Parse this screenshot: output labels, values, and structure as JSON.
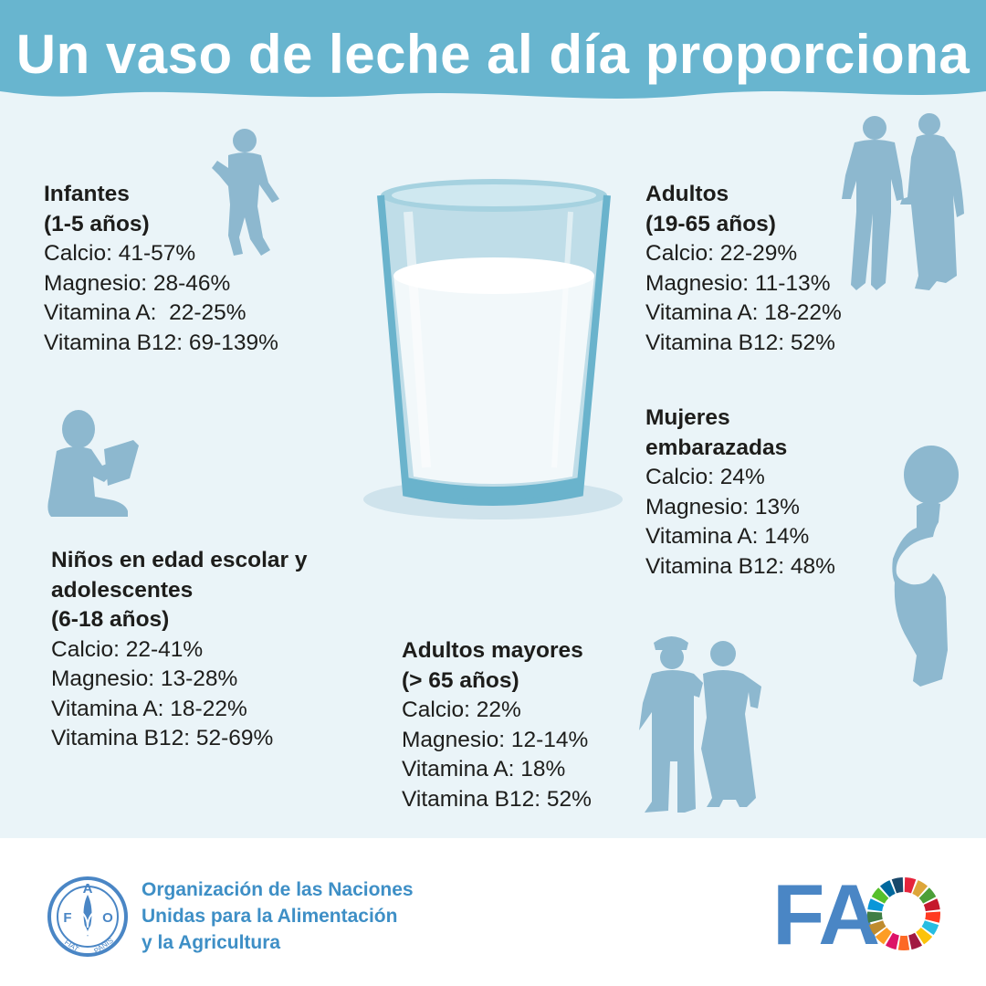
{
  "title": "Un vaso de leche al día proporciona",
  "colors": {
    "header": "#68b5cf",
    "background": "#eaf4f8",
    "silhouette": "#8db8cf",
    "text": "#1d1d1b",
    "fao_blue": "#4a86c5"
  },
  "groups": {
    "infantes": {
      "heading": [
        "Infantes",
        "(1-5 años)"
      ],
      "items": [
        "Calcio: 41-57%",
        "Magnesio: 28-46%",
        "Vitamina A:  22-25%",
        "Vitamina B12: 69-139%"
      ]
    },
    "adultos": {
      "heading": [
        "Adultos",
        "(19-65 años)"
      ],
      "items": [
        "Calcio: 22-29%",
        "Magnesio: 11-13%",
        "Vitamina A: 18-22%",
        "Vitamina B12: 52%"
      ]
    },
    "mujeres": {
      "heading": [
        "Mujeres",
        "embarazadas"
      ],
      "items": [
        "Calcio: 24%",
        "Magnesio: 13%",
        "Vitamina A: 14%",
        "Vitamina B12: 48%"
      ]
    },
    "ninos": {
      "heading": [
        "Niños en edad escolar y",
        "adolescentes",
        "(6-18 años)"
      ],
      "items": [
        "Calcio: 22-41%",
        "Magnesio: 13-28%",
        "Vitamina A: 18-22%",
        "Vitamina B12: 52-69%"
      ]
    },
    "mayores": {
      "heading": [
        "Adultos mayores",
        "(> 65 años)"
      ],
      "items": [
        "Calcio: 22%",
        "Magnesio: 12-14%",
        "Vitamina A: 18%",
        "Vitamina B12: 52%"
      ]
    }
  },
  "footer": {
    "org_name": [
      "Organización de las Naciones",
      "Unidas para la Alimentación",
      "y la Agricultura"
    ],
    "emblem_letters": {
      "top": "A",
      "left": "F",
      "right": "O",
      "bottom_left": "FIAT",
      "bottom_right": "PANIS"
    },
    "logo_text": "FA",
    "sdg_wheel_colors": [
      "#e5243b",
      "#dda63a",
      "#4c9f38",
      "#c5192d",
      "#ff3a21",
      "#26bde2",
      "#fcc30b",
      "#a21942",
      "#fd6925",
      "#dd1367",
      "#fd9d24",
      "#bf8b2e",
      "#3f7e44",
      "#0a97d9",
      "#56c02b",
      "#00689d",
      "#19486a"
    ]
  },
  "icons": [
    "glass-of-milk-icon",
    "child-running-icon",
    "child-reading-icon",
    "adult-couple-icon",
    "pregnant-woman-icon",
    "elderly-couple-icon",
    "fao-emblem-icon",
    "sdg-wheel-icon"
  ]
}
